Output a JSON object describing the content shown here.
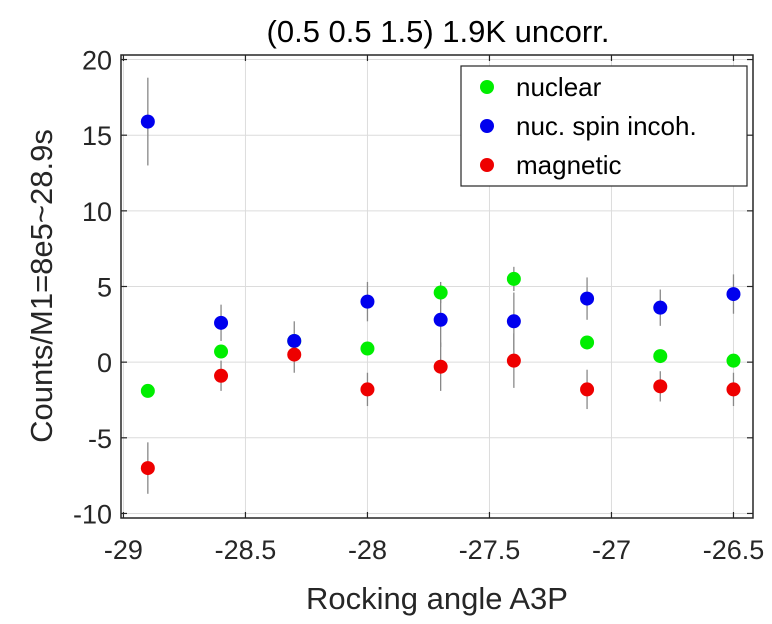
{
  "chart_data": {
    "type": "scatter",
    "title": "(0.5 0.5 1.5) 1.9K uncorr.",
    "xlabel": "Rocking angle A3P",
    "ylabel": "Counts/M1=8e5~28.9s",
    "xlim": [
      -29.01,
      -26.42
    ],
    "ylim": [
      -10.3,
      20.3
    ],
    "xticks": [
      -29,
      -28.5,
      -28,
      -27.5,
      -27,
      -26.5
    ],
    "xtick_labels": [
      "-29",
      "-28.5",
      "-28",
      "-27.5",
      "-27",
      "-26.5"
    ],
    "yticks": [
      -10,
      -5,
      0,
      5,
      10,
      15,
      20
    ],
    "ytick_labels": [
      "-10",
      "-5",
      "0",
      "5",
      "10",
      "15",
      "20"
    ],
    "grid": true,
    "legend_position": "top-right",
    "series": [
      {
        "name": "nuclear",
        "color": "#00ee00",
        "x": [
          -28.9,
          -28.6,
          -28.3,
          -28.0,
          -27.7,
          -27.4,
          -27.1,
          -26.8,
          -26.5
        ],
        "y": [
          -1.9,
          0.7,
          1.4,
          0.9,
          4.6,
          5.5,
          1.3,
          0.4,
          0.1
        ],
        "err": [
          0.0,
          0.0,
          0.0,
          0.0,
          0.7,
          0.8,
          0.0,
          0.0,
          0.0
        ]
      },
      {
        "name": "nuc. spin incoh.",
        "color": "#0000ee",
        "x": [
          -28.9,
          -28.6,
          -28.3,
          -28.0,
          -27.7,
          -27.4,
          -27.1,
          -26.8,
          -26.5
        ],
        "y": [
          15.9,
          2.6,
          1.4,
          4.0,
          2.8,
          2.7,
          4.2,
          3.6,
          4.5
        ],
        "err": [
          2.9,
          1.2,
          1.3,
          1.3,
          1.8,
          1.9,
          1.4,
          1.2,
          1.3
        ]
      },
      {
        "name": "magnetic",
        "color": "#ee0000",
        "x": [
          -28.9,
          -28.6,
          -28.3,
          -28.0,
          -27.7,
          -27.4,
          -27.1,
          -26.8,
          -26.5
        ],
        "y": [
          -7.0,
          -0.9,
          0.5,
          -1.8,
          -0.3,
          0.1,
          -1.8,
          -1.6,
          -1.8
        ],
        "err": [
          1.7,
          1.0,
          1.2,
          1.1,
          1.6,
          1.8,
          1.3,
          1.0,
          1.1
        ]
      }
    ]
  }
}
